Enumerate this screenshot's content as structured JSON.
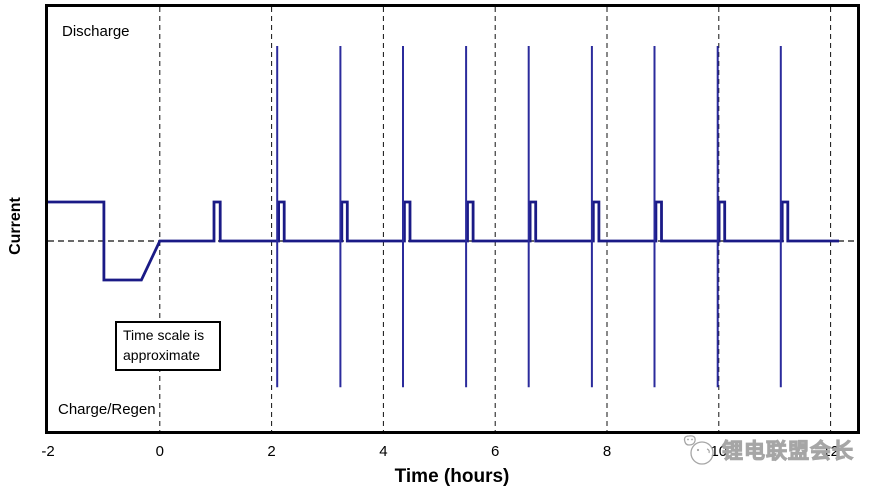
{
  "page": {
    "background": "#ffffff"
  },
  "watermark": {
    "text": "锂电联盟会长",
    "icon": "doodle-chick-icon",
    "color": "#a6a6a6"
  },
  "chart_data": {
    "type": "line",
    "title": "",
    "xlabel": "Time (hours)",
    "ylabel": "Current",
    "x_ticks": [
      -2,
      0,
      2,
      4,
      6,
      8,
      10,
      12
    ],
    "x_range": [
      -2,
      12.5
    ],
    "y_range_relative_units": [
      -4.9,
      6.0
    ],
    "y_axis_numeric_labels": false,
    "gridlines_x": [
      0,
      2,
      4,
      6,
      8,
      10,
      12
    ],
    "zero_reference_line": 0,
    "legend": "none",
    "annotations": {
      "discharge": "Discharge",
      "charge_regen": "Charge/Regen",
      "note": "Time scale is approximate"
    },
    "line_color": "#1a1a86",
    "spike_color": "#2b2b9c",
    "grid_color": "#111111",
    "base_profile_points": [
      [
        -2,
        1
      ],
      [
        -1,
        1
      ],
      [
        -1,
        -1
      ],
      [
        -0.33,
        -1
      ],
      [
        0,
        0
      ],
      [
        0.97,
        0
      ],
      [
        0.97,
        1
      ],
      [
        1.08,
        1
      ],
      [
        1.08,
        0
      ]
    ],
    "pulse_cycles": {
      "times": [
        2.1,
        3.23,
        4.35,
        5.48,
        6.6,
        7.73,
        8.85,
        9.98,
        11.11
      ],
      "discharge_peak": 5.0,
      "regen_peak": -3.75,
      "post_segment_level": 1.0,
      "post_segment_duration": 0.1
    },
    "line_end": 12.15
  }
}
